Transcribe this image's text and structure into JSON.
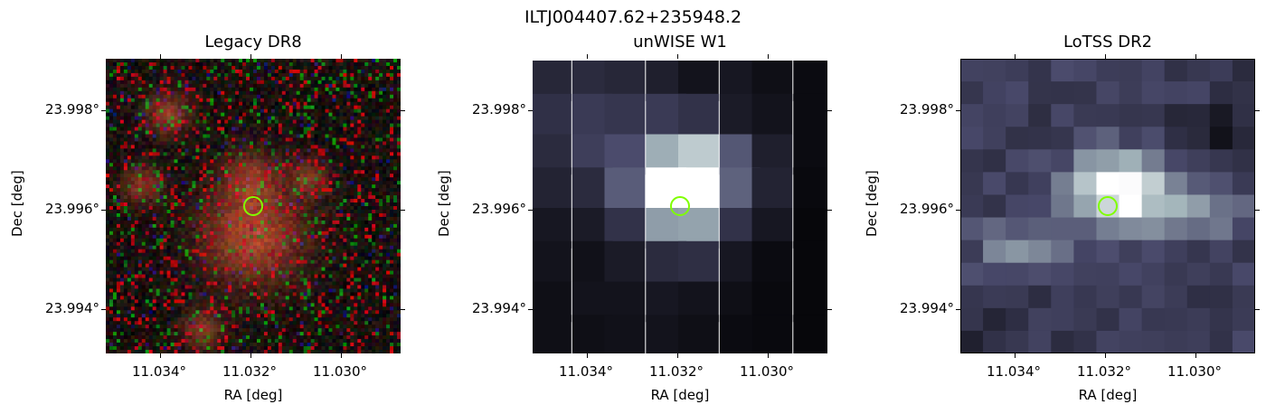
{
  "figure": {
    "title": "ILTJ004407.62+235948.2"
  },
  "panels": [
    {
      "id": "legacy",
      "title": "Legacy DR8",
      "xlabel": "RA [deg]",
      "ylabel": "Dec [deg]",
      "xticks": [
        "11.034°",
        "11.032°",
        "11.030°"
      ],
      "yticks": [
        "23.998°",
        "23.996°",
        "23.994°"
      ],
      "colormap": "rgb-noise"
    },
    {
      "id": "unwise",
      "title": "unWISE W1",
      "xlabel": "RA [deg]",
      "ylabel": "Dec [deg]",
      "xticks": [
        "11.034°",
        "11.032°",
        "11.030°"
      ],
      "yticks": [
        "23.998°",
        "23.996°",
        "23.994°"
      ],
      "colormap": "bone"
    },
    {
      "id": "lotss",
      "title": "LoTSS DR2",
      "xlabel": "RA [deg]",
      "ylabel": "Dec [deg]",
      "xticks": [
        "11.034°",
        "11.032°",
        "11.030°"
      ],
      "yticks": [
        "23.998°",
        "23.996°",
        "23.994°"
      ],
      "colormap": "bone"
    }
  ],
  "marker": {
    "color": "#7fff00",
    "shape": "circle"
  }
}
